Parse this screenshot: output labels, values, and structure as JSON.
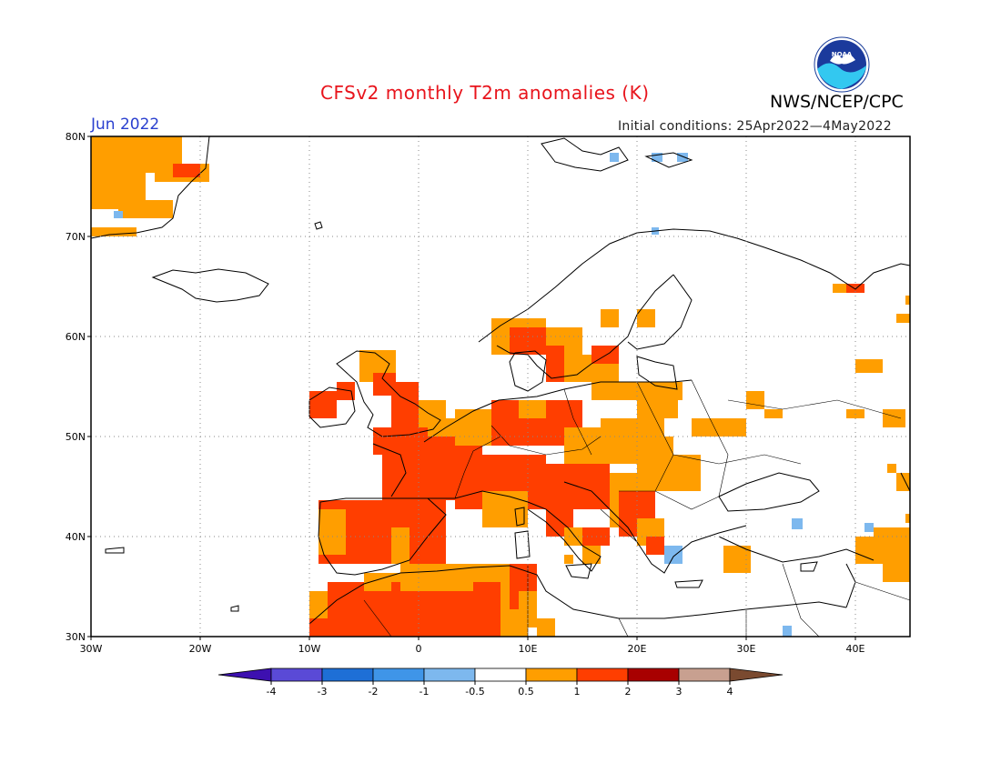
{
  "title": "CFSv2 monthly T2m anomalies (K)",
  "agency": "NWS/NCEP/CPC",
  "logo_text": "NOAA",
  "valid_month": "Jun 2022",
  "initial_conditions": "Initial conditions: 25Apr2022—4May2022",
  "map": {
    "lon_range": [
      -30,
      45
    ],
    "lat_range": [
      30,
      80
    ],
    "lat_labels": [
      "80N",
      "70N",
      "60N",
      "50N",
      "40N",
      "30N"
    ],
    "lon_labels": [
      "30W",
      "20W",
      "10W",
      "0",
      "10E",
      "20E",
      "30E",
      "40E"
    ],
    "grid": "dotted"
  },
  "colorbar": {
    "ticks": [
      "-4",
      "-3",
      "-2",
      "-1",
      "-0.5",
      "0.5",
      "1",
      "2",
      "3",
      "4"
    ],
    "colors": [
      "#3d10b0",
      "#5a4ad6",
      "#1e6fd6",
      "#3f95e8",
      "#7db8ee",
      "#ffffff",
      "#ff9e00",
      "#ff3e00",
      "#a80000",
      "#c8a090",
      "#7a4a30"
    ]
  },
  "anomaly_colors": {
    "warm_moderate": "#ff9e00",
    "warm_strong": "#ff3e00",
    "cool_weak": "#7db8ee"
  }
}
